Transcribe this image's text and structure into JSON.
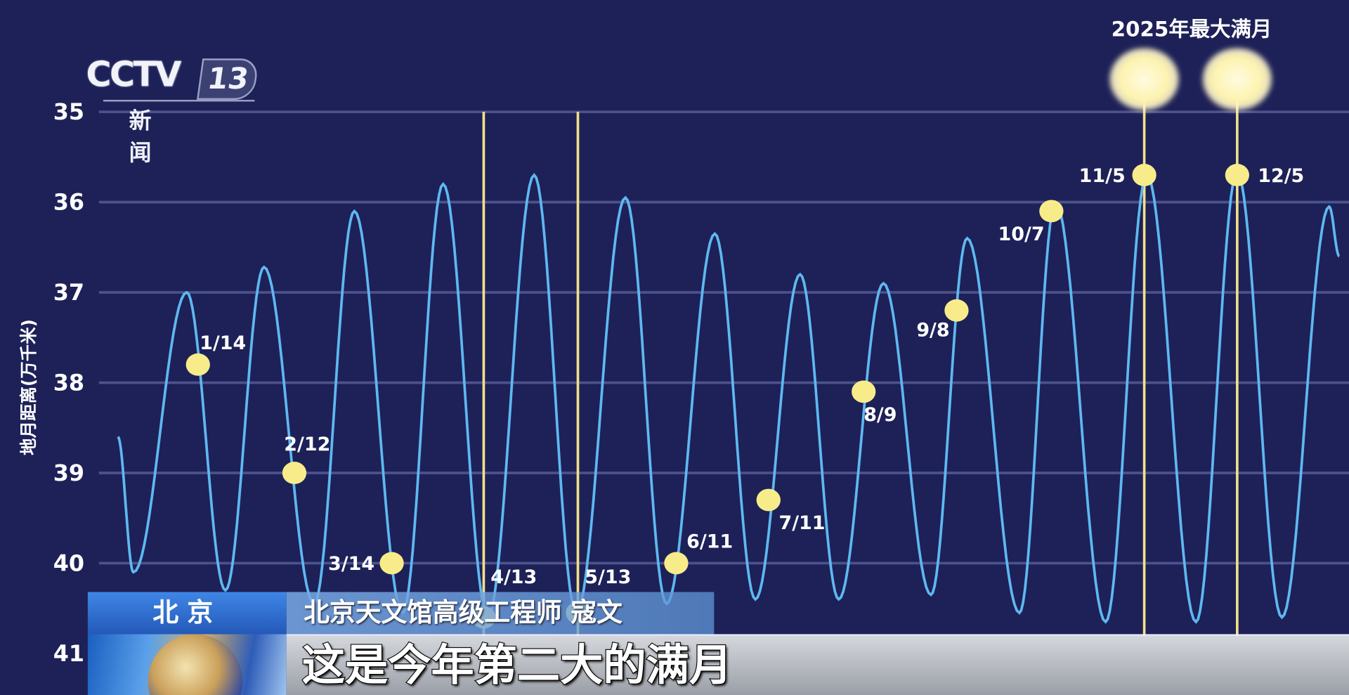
{
  "logo": {
    "brand": "CCTV",
    "channel": "13",
    "name": "新 闻"
  },
  "banner": {
    "location": "北京",
    "speaker": "北京天文馆高级工程师 寇文",
    "subtitle": "这是今年第二大的满月"
  },
  "colors": {
    "background": "#1d2158",
    "curve": "#5fb8f0",
    "moon": "#f8ec8a",
    "highlight_line": "#f0e08a",
    "grid": "#5a5f9a"
  },
  "chart_data": {
    "type": "line",
    "title": "",
    "highlight_label": "2025年最大满月",
    "ylabel": "地月距离(万千米)",
    "xlabel": "",
    "y_inverted": true,
    "ylim": [
      35,
      41
    ],
    "yticks": [
      "35",
      "36",
      "37",
      "38",
      "39",
      "40",
      "41"
    ],
    "grid": true,
    "x_unit": "day of 2025",
    "series": [
      {
        "extrema": [
          {
            "day": -11.6,
            "value": 38.6
          },
          {
            "day": -6.7,
            "value": 40.1
          },
          {
            "day": 10.0,
            "value": 37.0
          },
          {
            "day": 22.1,
            "value": 40.3
          },
          {
            "day": 34.2,
            "value": 36.72
          },
          {
            "day": 49.9,
            "value": 40.45
          },
          {
            "day": 62.5,
            "value": 36.1
          },
          {
            "day": 77.6,
            "value": 40.55
          },
          {
            "day": 90.3,
            "value": 35.8
          },
          {
            "day": 104.3,
            "value": 40.6
          },
          {
            "day": 118.8,
            "value": 35.7
          },
          {
            "day": 132.0,
            "value": 40.55
          },
          {
            "day": 147.4,
            "value": 35.95
          },
          {
            "day": 160.3,
            "value": 40.45
          },
          {
            "day": 175.4,
            "value": 36.35
          },
          {
            "day": 188.1,
            "value": 40.4
          },
          {
            "day": 202.1,
            "value": 36.8
          },
          {
            "day": 214.2,
            "value": 40.4
          },
          {
            "day": 228.2,
            "value": 36.9
          },
          {
            "day": 243.1,
            "value": 40.35
          },
          {
            "day": 254.4,
            "value": 36.4
          },
          {
            "day": 270.8,
            "value": 40.55
          },
          {
            "day": 282.1,
            "value": 36.0
          },
          {
            "day": 297.8,
            "value": 40.65
          },
          {
            "day": 310.7,
            "value": 35.7
          },
          {
            "day": 326.1,
            "value": 40.65
          },
          {
            "day": 339.0,
            "value": 35.67
          },
          {
            "day": 353.0,
            "value": 40.6
          },
          {
            "day": 367.8,
            "value": 36.05
          },
          {
            "day": 371.0,
            "value": 36.6
          }
        ]
      }
    ],
    "full_moons": [
      {
        "label": "1/14",
        "day": 13.5,
        "value": 37.8
      },
      {
        "label": "2/12",
        "day": 43.7,
        "value": 39.0
      },
      {
        "label": "3/14",
        "day": 74.2,
        "value": 40.0
      },
      {
        "label": "4/13",
        "day": 103.0,
        "value": 40.6,
        "marker_line": true
      },
      {
        "label": "5/13",
        "day": 132.5,
        "value": 40.55,
        "marker_line": true
      },
      {
        "label": "6/11",
        "day": 163.3,
        "value": 40.0
      },
      {
        "label": "7/11",
        "day": 192.2,
        "value": 39.3
      },
      {
        "label": "8/9",
        "day": 222.0,
        "value": 38.1
      },
      {
        "label": "9/8",
        "day": 251.1,
        "value": 37.2
      },
      {
        "label": "10/7",
        "day": 280.8,
        "value": 36.1
      },
      {
        "label": "11/5",
        "day": 309.9,
        "value": 35.7,
        "marker_line": true,
        "largest": true
      },
      {
        "label": "12/5",
        "day": 339.0,
        "value": 35.7,
        "marker_line": true,
        "largest": true
      }
    ]
  }
}
